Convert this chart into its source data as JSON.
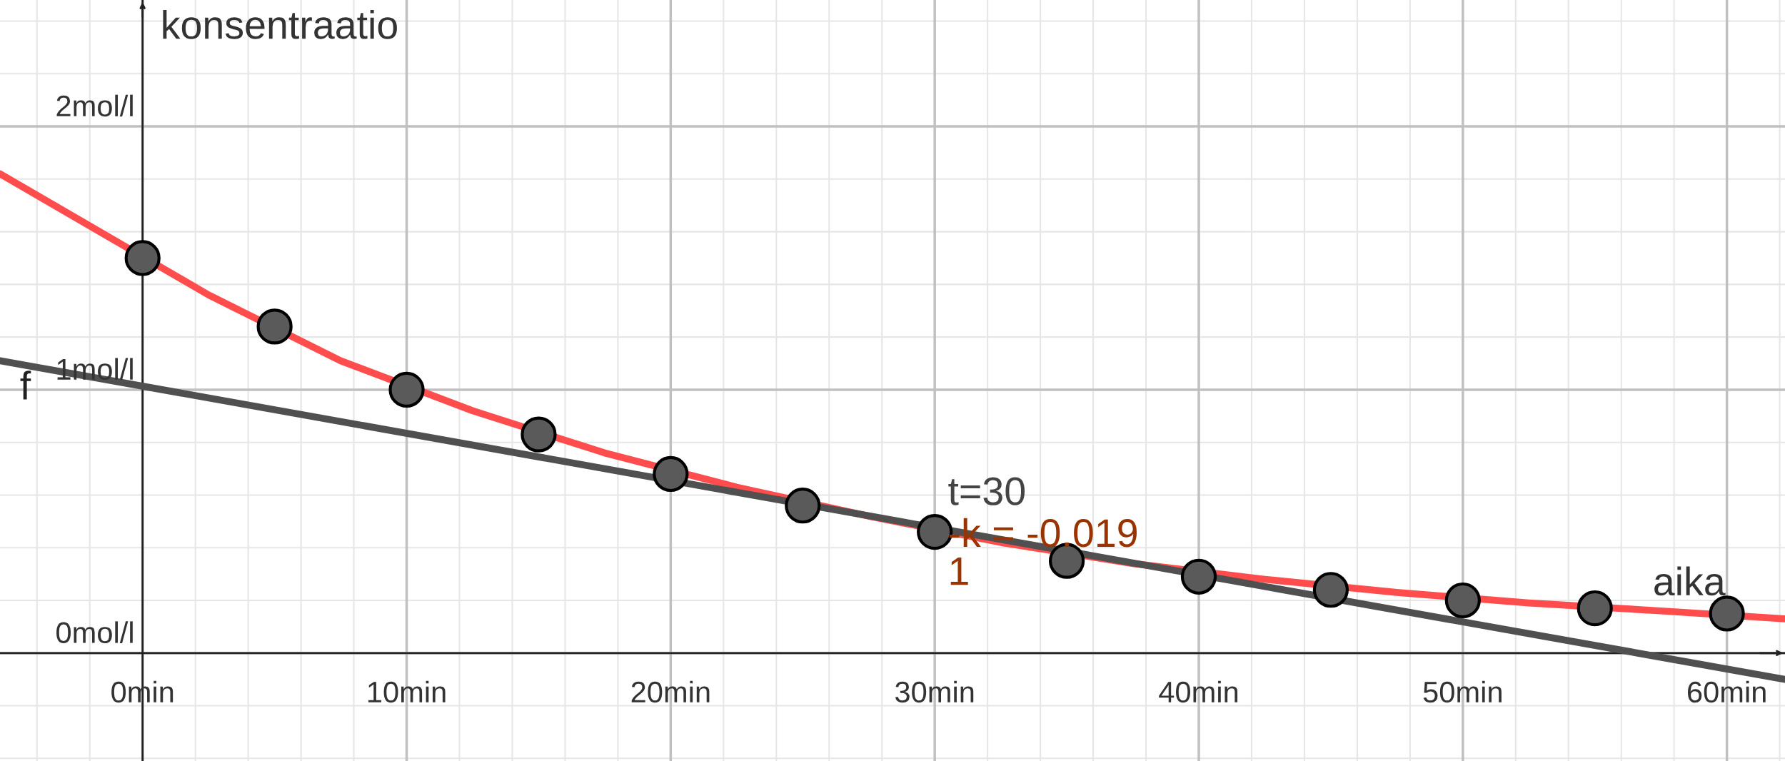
{
  "chart_data": {
    "type": "scatter",
    "xlabel": "aika",
    "ylabel": "konsentraatio",
    "xlim": [
      -5.4,
      62.2
    ],
    "ylim": [
      -0.41,
      2.48
    ],
    "xticks": [
      {
        "value": 0,
        "label": "0min"
      },
      {
        "value": 10,
        "label": "10min"
      },
      {
        "value": 20,
        "label": "20min"
      },
      {
        "value": 30,
        "label": "30min"
      },
      {
        "value": 40,
        "label": "40min"
      },
      {
        "value": 50,
        "label": "50min"
      },
      {
        "value": 60,
        "label": "60min"
      }
    ],
    "yticks": [
      {
        "value": 0,
        "label": "0mol/l"
      },
      {
        "value": 1,
        "label": "1mol/l"
      },
      {
        "value": 2,
        "label": "2mol/l"
      }
    ],
    "grid": true,
    "legend": false,
    "series": [
      {
        "type": "line",
        "color": "#ff4d4d",
        "x": [
          -5.4,
          2.5,
          7.5,
          12.5,
          17.5,
          22.5,
          27.5,
          32.5,
          37.5,
          42.5,
          47.5,
          52.5,
          57.5,
          62.2
        ],
        "values": [
          1.82,
          1.36,
          1.11,
          0.92,
          0.76,
          0.63,
          0.52,
          0.42,
          0.34,
          0.28,
          0.23,
          0.19,
          0.16,
          0.13
        ]
      },
      {
        "type": "line",
        "name": "f",
        "color": "#505050",
        "x": [
          -5.4,
          62.2
        ],
        "values": [
          1.11,
          -0.1
        ]
      },
      {
        "marker": "circle",
        "color": "#5a5a5a",
        "x": [
          0,
          5,
          10,
          15,
          20,
          25,
          30,
          35,
          40,
          45,
          50,
          55,
          60
        ],
        "values": [
          1.5,
          1.24,
          1.0,
          0.83,
          0.68,
          0.56,
          0.46,
          0.35,
          0.29,
          0.24,
          0.2,
          0.17,
          0.15
        ]
      }
    ],
    "annotations": [
      "t=30",
      "-k = -0.019",
      "1"
    ]
  }
}
